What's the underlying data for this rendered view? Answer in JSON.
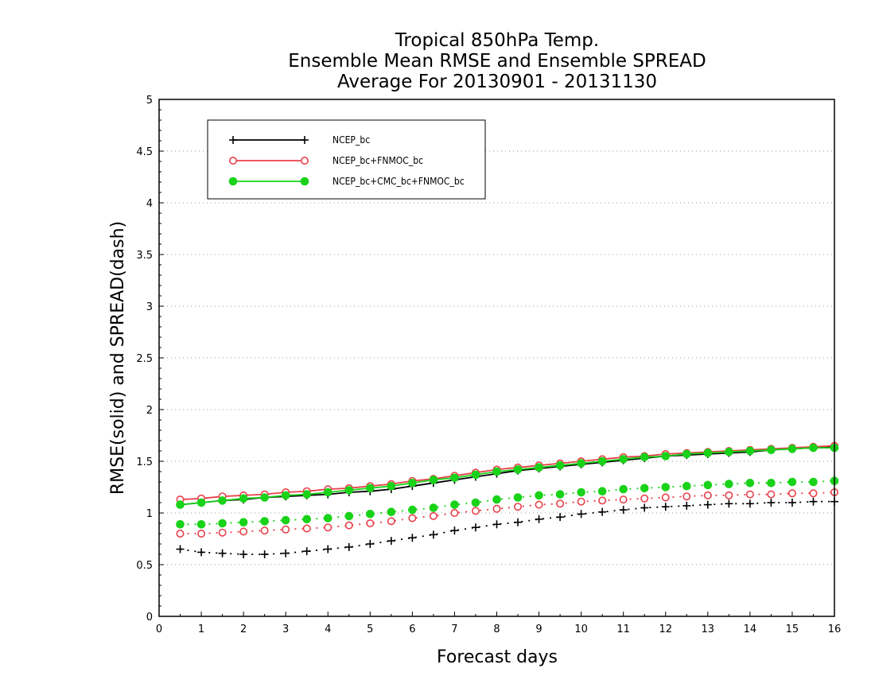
{
  "chart_data": {
    "type": "line",
    "title": [
      "Tropical 850hPa Temp.",
      "Ensemble Mean RMSE and Ensemble SPREAD",
      "Average For 20130901 - 20131130"
    ],
    "xlabel": "Forecast days",
    "ylabel": "RMSE(solid) and SPREAD(dash)",
    "xlim": [
      0,
      16
    ],
    "ylim": [
      0,
      5
    ],
    "xticks": [
      0,
      1,
      2,
      3,
      4,
      5,
      6,
      7,
      8,
      9,
      10,
      11,
      12,
      13,
      14,
      15,
      16
    ],
    "yticks": [
      0,
      0.5,
      1,
      1.5,
      2,
      2.5,
      3,
      3.5,
      4,
      4.5,
      5
    ],
    "ytick_labels": [
      "0",
      "0.5",
      "1",
      "1.5",
      "2",
      "2.5",
      "3",
      "3.5",
      "4",
      "4.5",
      "5"
    ],
    "grid": "horizontal dotted",
    "legend_position": "top-left",
    "x": [
      0.5,
      1,
      1.5,
      2,
      2.5,
      3,
      3.5,
      4,
      4.5,
      5,
      5.5,
      6,
      6.5,
      7,
      7.5,
      8,
      8.5,
      9,
      9.5,
      10,
      10.5,
      11,
      11.5,
      12,
      12.5,
      13,
      13.5,
      14,
      14.5,
      15,
      15.5,
      16
    ],
    "series": [
      {
        "name": "NCEP_bc",
        "color": "#000000",
        "marker": "plus",
        "rmse": [
          1.08,
          1.1,
          1.12,
          1.13,
          1.15,
          1.16,
          1.17,
          1.18,
          1.2,
          1.21,
          1.23,
          1.26,
          1.29,
          1.32,
          1.35,
          1.38,
          1.41,
          1.43,
          1.45,
          1.47,
          1.49,
          1.51,
          1.53,
          1.55,
          1.56,
          1.57,
          1.58,
          1.59,
          1.61,
          1.62,
          1.63,
          1.64
        ],
        "spread": [
          0.65,
          0.62,
          0.61,
          0.6,
          0.6,
          0.61,
          0.63,
          0.65,
          0.67,
          0.7,
          0.73,
          0.76,
          0.79,
          0.83,
          0.86,
          0.89,
          0.91,
          0.94,
          0.96,
          0.99,
          1.01,
          1.03,
          1.05,
          1.06,
          1.07,
          1.08,
          1.09,
          1.09,
          1.1,
          1.1,
          1.11,
          1.11
        ]
      },
      {
        "name": "NCEP_bc+FNMOC_bc",
        "color": "#e8404a",
        "marker": "open-circle",
        "rmse": [
          1.13,
          1.14,
          1.16,
          1.17,
          1.18,
          1.2,
          1.21,
          1.23,
          1.24,
          1.26,
          1.28,
          1.31,
          1.33,
          1.36,
          1.39,
          1.42,
          1.44,
          1.46,
          1.48,
          1.5,
          1.52,
          1.54,
          1.55,
          1.57,
          1.58,
          1.59,
          1.6,
          1.61,
          1.62,
          1.63,
          1.64,
          1.65
        ],
        "spread": [
          0.8,
          0.8,
          0.81,
          0.82,
          0.83,
          0.84,
          0.85,
          0.86,
          0.88,
          0.9,
          0.92,
          0.95,
          0.97,
          1.0,
          1.02,
          1.04,
          1.06,
          1.08,
          1.09,
          1.11,
          1.12,
          1.13,
          1.14,
          1.15,
          1.16,
          1.17,
          1.17,
          1.18,
          1.18,
          1.19,
          1.19,
          1.2
        ]
      },
      {
        "name": "NCEP_bc+CMC_bc+FNMOC_bc",
        "color": "#19d219",
        "marker": "filled-circle",
        "rmse": [
          1.08,
          1.1,
          1.12,
          1.14,
          1.15,
          1.17,
          1.18,
          1.2,
          1.22,
          1.24,
          1.26,
          1.29,
          1.32,
          1.34,
          1.37,
          1.4,
          1.42,
          1.44,
          1.46,
          1.48,
          1.5,
          1.52,
          1.54,
          1.55,
          1.57,
          1.58,
          1.59,
          1.6,
          1.61,
          1.62,
          1.63,
          1.63
        ],
        "spread": [
          0.89,
          0.89,
          0.9,
          0.91,
          0.92,
          0.93,
          0.94,
          0.95,
          0.97,
          0.99,
          1.01,
          1.03,
          1.05,
          1.08,
          1.1,
          1.13,
          1.15,
          1.17,
          1.18,
          1.2,
          1.21,
          1.23,
          1.24,
          1.25,
          1.26,
          1.27,
          1.28,
          1.29,
          1.29,
          1.3,
          1.3,
          1.31
        ]
      }
    ]
  }
}
